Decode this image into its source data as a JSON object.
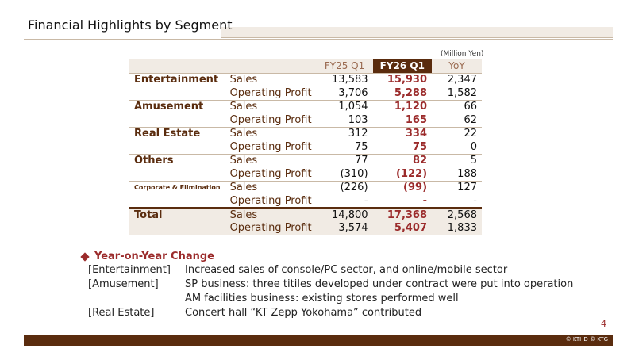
{
  "title": "Financial Highlights by Segment",
  "unit": "(Million Yen)",
  "columns": [
    "FY25 Q1",
    "FY26 Q1",
    "YoY"
  ],
  "segments": [
    {
      "name": "Entertainment",
      "rows": [
        {
          "item": "Sales",
          "fy25": "13,583",
          "fy26": "15,930",
          "yoy": "2,347"
        },
        {
          "item": "Operating Profit",
          "fy25": "3,706",
          "fy26": "5,288",
          "yoy": "1,582"
        }
      ]
    },
    {
      "name": "Amusement",
      "rows": [
        {
          "item": "Sales",
          "fy25": "1,054",
          "fy26": "1,120",
          "yoy": "66"
        },
        {
          "item": "Operating Profit",
          "fy25": "103",
          "fy26": "165",
          "yoy": "62"
        }
      ]
    },
    {
      "name": "Real Estate",
      "rows": [
        {
          "item": "Sales",
          "fy25": "312",
          "fy26": "334",
          "yoy": "22"
        },
        {
          "item": "Operating Profit",
          "fy25": "75",
          "fy26": "75",
          "yoy": "0"
        }
      ]
    },
    {
      "name": "Others",
      "rows": [
        {
          "item": "Sales",
          "fy25": "77",
          "fy26": "82",
          "yoy": "5"
        },
        {
          "item": "Operating Profit",
          "fy25": "(310)",
          "fy26": "(122)",
          "yoy": "188"
        }
      ]
    },
    {
      "name": "Corporate & Elimination",
      "rows": [
        {
          "item": "Sales",
          "fy25": "(226)",
          "fy26": "(99)",
          "yoy": "127"
        },
        {
          "item": "Operating Profit",
          "fy25": "-",
          "fy26": "-",
          "yoy": "-"
        }
      ]
    },
    {
      "name": "Total",
      "rows": [
        {
          "item": "Sales",
          "fy25": "14,800",
          "fy26": "17,368",
          "yoy": "2,568"
        },
        {
          "item": "Operating Profit",
          "fy25": "3,574",
          "fy26": "5,407",
          "yoy": "1,833"
        }
      ]
    }
  ],
  "notes": {
    "heading": "Year-on-Year Change",
    "items": [
      {
        "tag": "[Entertainment]",
        "text": "Increased sales of console/PC sector, and online/mobile sector"
      },
      {
        "tag": "[Amusement]",
        "text": "SP business: three titiles developed under contract were put into operation"
      },
      {
        "tag": "",
        "text": "AM facilities business: existing stores performed well"
      },
      {
        "tag": "[Real Estate]",
        "text": "Concert hall “KT Zepp Yokohama” contributed"
      }
    ]
  },
  "page_number": "4",
  "copyright": "© KTHD © KTG",
  "colors": {
    "brand": "#5a2c0e",
    "accent": "#9b2b2b",
    "shade": "#f1ebe4"
  }
}
